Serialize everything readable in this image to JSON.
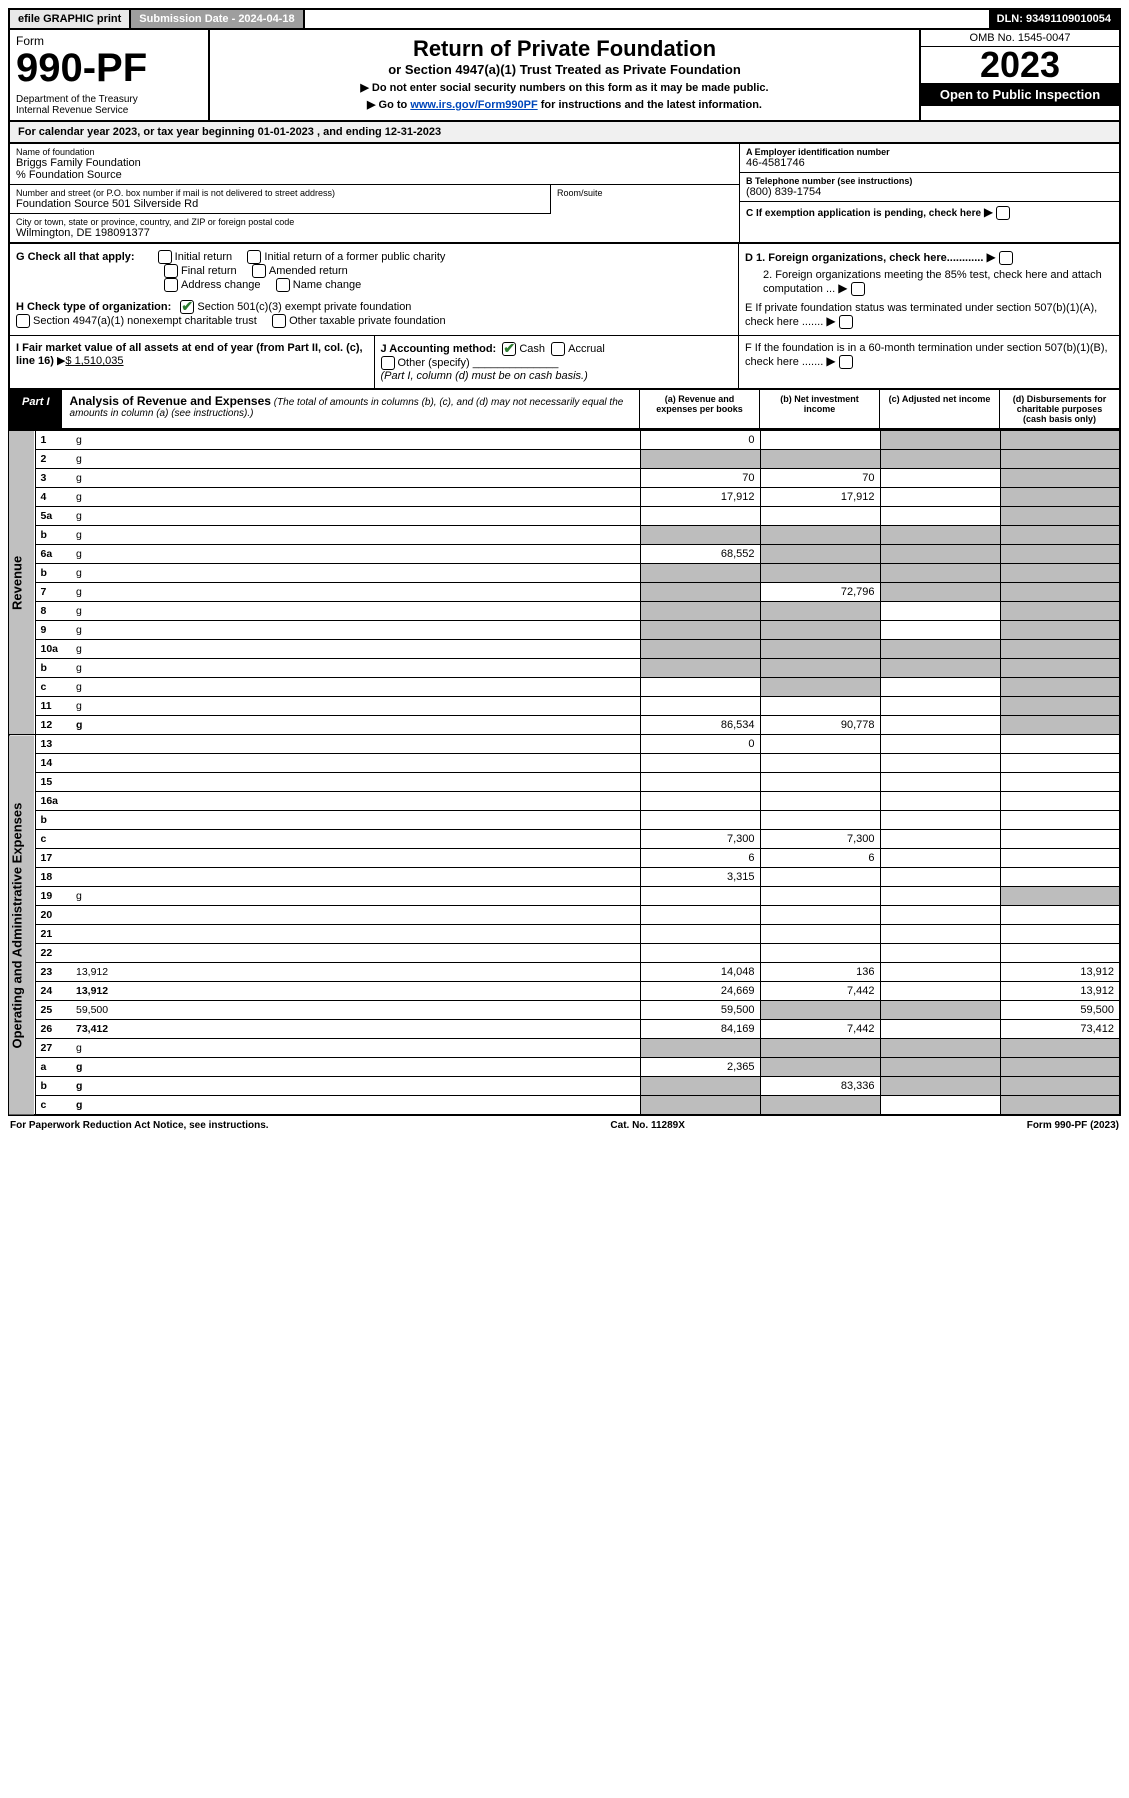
{
  "topbar": {
    "efile": "efile GRAPHIC print",
    "submission": "Submission Date - 2024-04-18",
    "dln": "DLN: 93491109010054"
  },
  "header": {
    "form_word": "Form",
    "form_num": "990-PF",
    "dept": "Department of the Treasury\nInternal Revenue Service",
    "title": "Return of Private Foundation",
    "subtitle": "or Section 4947(a)(1) Trust Treated as Private Foundation",
    "note1": "▶ Do not enter social security numbers on this form as it may be made public.",
    "note2_pre": "▶ Go to ",
    "note2_link": "www.irs.gov/Form990PF",
    "note2_post": " for instructions and the latest information.",
    "omb": "OMB No. 1545-0047",
    "year": "2023",
    "open": "Open to Public Inspection"
  },
  "cal_year": "For calendar year 2023, or tax year beginning 01-01-2023                          , and ending 12-31-2023",
  "info": {
    "name_lbl": "Name of foundation",
    "name": "Briggs Family Foundation",
    "care_of": "% Foundation Source",
    "addr_lbl": "Number and street (or P.O. box number if mail is not delivered to street address)",
    "addr": "Foundation Source 501 Silverside Rd",
    "room_lbl": "Room/suite",
    "city_lbl": "City or town, state or province, country, and ZIP or foreign postal code",
    "city": "Wilmington, DE  198091377",
    "ein_lbl": "A Employer identification number",
    "ein": "46-4581746",
    "phone_lbl": "B Telephone number (see instructions)",
    "phone": "(800) 839-1754",
    "c_lbl": "C If exemption application is pending, check here",
    "d1": "D 1. Foreign organizations, check here............",
    "d2": "2. Foreign organizations meeting the 85% test, check here and attach computation ...",
    "e_lbl": "E  If private foundation status was terminated under section 507(b)(1)(A), check here .......",
    "f_lbl": "F  If the foundation is in a 60-month termination under section 507(b)(1)(B), check here .......",
    "g_lbl": "G Check all that apply:",
    "g_opts": [
      "Initial return",
      "Initial return of a former public charity",
      "Final return",
      "Amended return",
      "Address change",
      "Name change"
    ],
    "h_lbl": "H Check type of organization:",
    "h_1": "Section 501(c)(3) exempt private foundation",
    "h_2": "Section 4947(a)(1) nonexempt charitable trust",
    "h_3": "Other taxable private foundation",
    "i_lbl": "I Fair market value of all assets at end of year (from Part II, col. (c), line 16)",
    "i_val": "$  1,510,035",
    "j_lbl": "J Accounting method:",
    "j_cash": "Cash",
    "j_accrual": "Accrual",
    "j_other": "Other (specify)",
    "j_note": "(Part I, column (d) must be on cash basis.)"
  },
  "part1": {
    "label": "Part I",
    "title": "Analysis of Revenue and Expenses",
    "title_note": " (The total of amounts in columns (b), (c), and (d) may not necessarily equal the amounts in column (a) (see instructions).)",
    "col_a": "(a)   Revenue and expenses per books",
    "col_b": "(b)   Net investment income",
    "col_c": "(c)   Adjusted net income",
    "col_d": "(d)   Disbursements for charitable purposes (cash basis only)"
  },
  "side_labels": {
    "rev": "Revenue",
    "exp": "Operating and Administrative Expenses"
  },
  "rows": [
    {
      "n": "1",
      "d": "g",
      "a": "0",
      "b": "",
      "c": "g"
    },
    {
      "n": "2",
      "d": "g",
      "a": "g",
      "b": "g",
      "c": "g"
    },
    {
      "n": "3",
      "d": "g",
      "a": "70",
      "b": "70",
      "c": ""
    },
    {
      "n": "4",
      "d": "g",
      "a": "17,912",
      "b": "17,912",
      "c": ""
    },
    {
      "n": "5a",
      "d": "g",
      "a": "",
      "b": "",
      "c": ""
    },
    {
      "n": "b",
      "d": "g",
      "a": "g",
      "b": "g",
      "c": "g"
    },
    {
      "n": "6a",
      "d": "g",
      "a": "68,552",
      "b": "g",
      "c": "g"
    },
    {
      "n": "b",
      "d": "g",
      "a": "g",
      "b": "g",
      "c": "g"
    },
    {
      "n": "7",
      "d": "g",
      "a": "g",
      "b": "72,796",
      "c": "g"
    },
    {
      "n": "8",
      "d": "g",
      "a": "g",
      "b": "g",
      "c": ""
    },
    {
      "n": "9",
      "d": "g",
      "a": "g",
      "b": "g",
      "c": ""
    },
    {
      "n": "10a",
      "d": "g",
      "a": "g",
      "b": "g",
      "c": "g"
    },
    {
      "n": "b",
      "d": "g",
      "a": "g",
      "b": "g",
      "c": "g"
    },
    {
      "n": "c",
      "d": "g",
      "a": "",
      "b": "g",
      "c": ""
    },
    {
      "n": "11",
      "d": "g",
      "a": "",
      "b": "",
      "c": ""
    },
    {
      "n": "12",
      "d": "g",
      "a": "86,534",
      "b": "90,778",
      "c": "",
      "bold": true
    }
  ],
  "exp_rows": [
    {
      "n": "13",
      "d": "",
      "a": "0",
      "b": "",
      "c": ""
    },
    {
      "n": "14",
      "d": "",
      "a": "",
      "b": "",
      "c": ""
    },
    {
      "n": "15",
      "d": "",
      "a": "",
      "b": "",
      "c": ""
    },
    {
      "n": "16a",
      "d": "",
      "a": "",
      "b": "",
      "c": ""
    },
    {
      "n": "b",
      "d": "",
      "a": "",
      "b": "",
      "c": ""
    },
    {
      "n": "c",
      "d": "",
      "a": "7,300",
      "b": "7,300",
      "c": ""
    },
    {
      "n": "17",
      "d": "",
      "a": "6",
      "b": "6",
      "c": ""
    },
    {
      "n": "18",
      "d": "",
      "a": "3,315",
      "b": "",
      "c": ""
    },
    {
      "n": "19",
      "d": "g",
      "a": "",
      "b": "",
      "c": ""
    },
    {
      "n": "20",
      "d": "",
      "a": "",
      "b": "",
      "c": ""
    },
    {
      "n": "21",
      "d": "",
      "a": "",
      "b": "",
      "c": ""
    },
    {
      "n": "22",
      "d": "",
      "a": "",
      "b": "",
      "c": ""
    },
    {
      "n": "23",
      "d": "13,912",
      "a": "14,048",
      "b": "136",
      "c": ""
    },
    {
      "n": "24",
      "d": "13,912",
      "a": "24,669",
      "b": "7,442",
      "c": "",
      "bold": true
    },
    {
      "n": "25",
      "d": "59,500",
      "a": "59,500",
      "b": "g",
      "c": "g"
    },
    {
      "n": "26",
      "d": "73,412",
      "a": "84,169",
      "b": "7,442",
      "c": "",
      "bold": true
    },
    {
      "n": "27",
      "d": "g",
      "a": "g",
      "b": "g",
      "c": "g"
    },
    {
      "n": "a",
      "d": "g",
      "a": "2,365",
      "b": "g",
      "c": "g",
      "bold": true
    },
    {
      "n": "b",
      "d": "g",
      "a": "g",
      "b": "83,336",
      "c": "g",
      "bold": true
    },
    {
      "n": "c",
      "d": "g",
      "a": "g",
      "b": "g",
      "c": "",
      "bold": true
    }
  ],
  "footer": {
    "left": "For Paperwork Reduction Act Notice, see instructions.",
    "mid": "Cat. No. 11289X",
    "right": "Form 990-PF (2023)"
  },
  "colors": {
    "link": "#0047bb",
    "grey_cell": "#bdbdbd",
    "side_grey": "#c0c0c0",
    "check_green": "#2e7d32"
  }
}
